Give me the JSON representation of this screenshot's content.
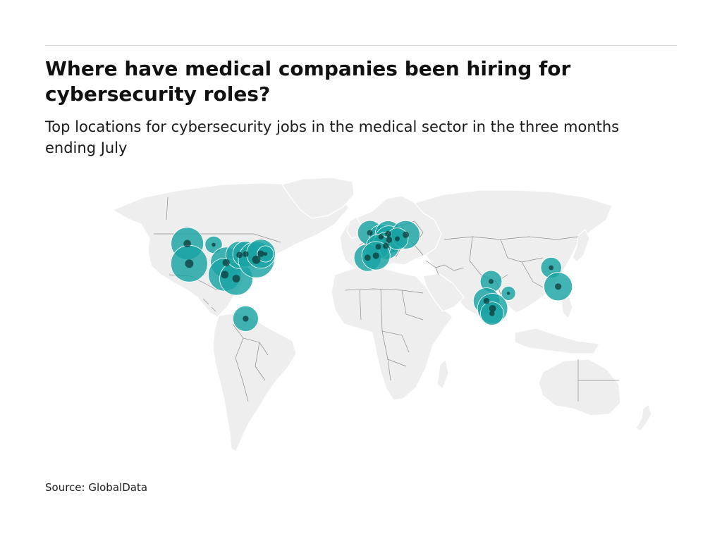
{
  "header": {
    "title": "Where have medical companies been hiring for cybersecurity roles?",
    "subtitle": "Top locations for cybersecurity jobs in the medical sector in the three months ending July"
  },
  "footer": {
    "source": "Source: GlobalData"
  },
  "map": {
    "projection": "equirectangular world map",
    "land_color": "#eeeeee",
    "border_color": "#8c8c8c",
    "bubble_color": "#1aa3a3",
    "bubble_overlap_color": "#0e3b3b",
    "locations": [
      {
        "region": "us-northwest",
        "lon": -122.3,
        "lat": 47.6,
        "size": 0.78
      },
      {
        "region": "us-north-central",
        "lon": -105.0,
        "lat": 47.0,
        "size": 0.22
      },
      {
        "region": "us-west-coast",
        "lon": -121.0,
        "lat": 37.5,
        "size": 1.0
      },
      {
        "region": "us-central",
        "lon": -96.8,
        "lat": 38.0,
        "size": 0.72
      },
      {
        "region": "us-south-central",
        "lon": -97.7,
        "lat": 32.0,
        "size": 0.8
      },
      {
        "region": "us-south",
        "lon": -90.2,
        "lat": 30.0,
        "size": 0.82
      },
      {
        "region": "us-midwest",
        "lon": -88.0,
        "lat": 41.9,
        "size": 0.55
      },
      {
        "region": "us-great-lakes",
        "lon": -84.0,
        "lat": 42.3,
        "size": 0.5
      },
      {
        "region": "us-mid-atlantic",
        "lon": -77.0,
        "lat": 39.5,
        "size": 0.96
      },
      {
        "region": "us-northeast",
        "lon": -74.0,
        "lat": 42.5,
        "size": 0.62
      },
      {
        "region": "us-new-england",
        "lon": -71.0,
        "lat": 42.4,
        "size": 0.2
      },
      {
        "region": "central-america",
        "lon": -84.0,
        "lat": 9.9,
        "size": 0.48
      },
      {
        "region": "uk-ireland",
        "lon": -2.5,
        "lat": 53.0,
        "size": 0.45
      },
      {
        "region": "benelux",
        "lon": 4.8,
        "lat": 51.0,
        "size": 0.42
      },
      {
        "region": "germany-north",
        "lon": 9.5,
        "lat": 52.5,
        "size": 0.5
      },
      {
        "region": "germany-central",
        "lon": 10.0,
        "lat": 49.5,
        "size": 0.58
      },
      {
        "region": "switzerland",
        "lon": 8.0,
        "lat": 46.5,
        "size": 0.55
      },
      {
        "region": "france",
        "lon": 3.0,
        "lat": 46.0,
        "size": 0.45
      },
      {
        "region": "poland",
        "lon": 21.0,
        "lat": 52.0,
        "size": 0.6
      },
      {
        "region": "czechia",
        "lon": 15.5,
        "lat": 50.0,
        "size": 0.35
      },
      {
        "region": "spain-portugal",
        "lon": -4.0,
        "lat": 40.5,
        "size": 0.55
      },
      {
        "region": "iberia-east",
        "lon": 1.5,
        "lat": 41.5,
        "size": 0.6
      },
      {
        "region": "india-north",
        "lon": 77.0,
        "lat": 28.6,
        "size": 0.35
      },
      {
        "region": "india-east",
        "lon": 88.4,
        "lat": 22.6,
        "size": 0.15
      },
      {
        "region": "india-west",
        "lon": 74.0,
        "lat": 18.8,
        "size": 0.52
      },
      {
        "region": "india-south",
        "lon": 78.0,
        "lat": 15.0,
        "size": 0.68
      },
      {
        "region": "india-deep-south",
        "lon": 77.6,
        "lat": 12.5,
        "size": 0.4
      },
      {
        "region": "china-north",
        "lon": 116.4,
        "lat": 35.5,
        "size": 0.32
      },
      {
        "region": "china-east",
        "lon": 121.0,
        "lat": 26.0,
        "size": 0.6
      }
    ]
  }
}
